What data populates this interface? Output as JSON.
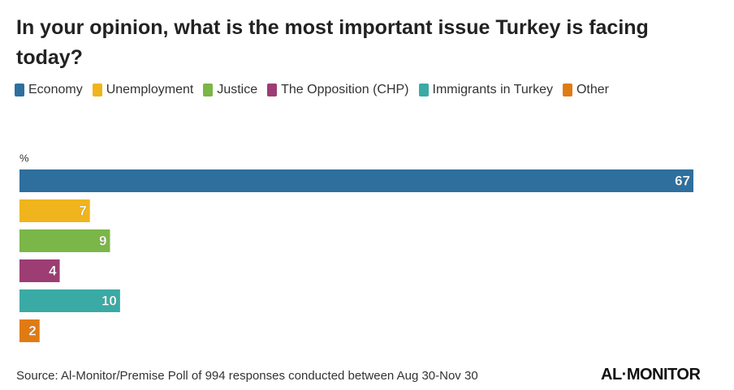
{
  "chart_data": {
    "type": "bar",
    "orientation": "horizontal",
    "title": "In your opinion, what is the most important issue Turkey is facing today?",
    "unit_label": "%",
    "categories": [
      "Economy",
      "Unemployment",
      "Justice",
      "The Opposition (CHP)",
      "Immigrants in Turkey",
      "Other"
    ],
    "values": [
      67,
      7,
      9,
      4,
      10,
      2
    ],
    "colors": [
      "#2e6f9e",
      "#f0b41c",
      "#7ab648",
      "#9c3d74",
      "#3aaaa5",
      "#e07b14"
    ],
    "source": "Source: Al-Monitor/Premise Poll of 994 responses conducted between Aug 30-Nov 30",
    "logo": "AL·MONITOR"
  }
}
